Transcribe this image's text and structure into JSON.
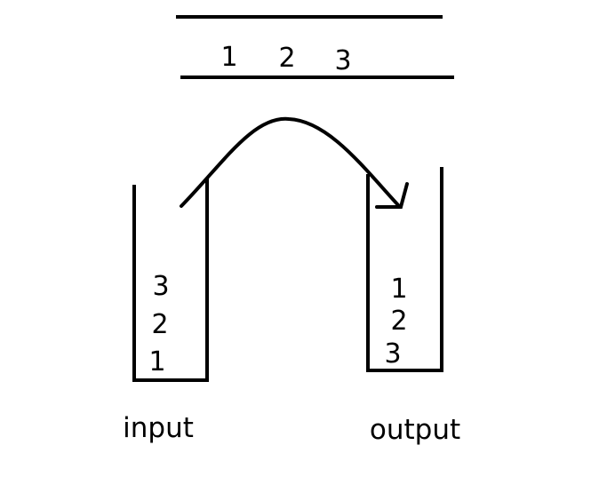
{
  "queue": {
    "items": [
      "1",
      "2",
      "3"
    ]
  },
  "input_stack": {
    "label": "input",
    "items_top_to_bottom": [
      "3",
      "2",
      "1"
    ]
  },
  "output_stack": {
    "label": "output",
    "items_top_to_bottom": [
      "1",
      "2",
      "3"
    ]
  },
  "colors": {
    "stroke": "#000000",
    "background": "#ffffff"
  }
}
